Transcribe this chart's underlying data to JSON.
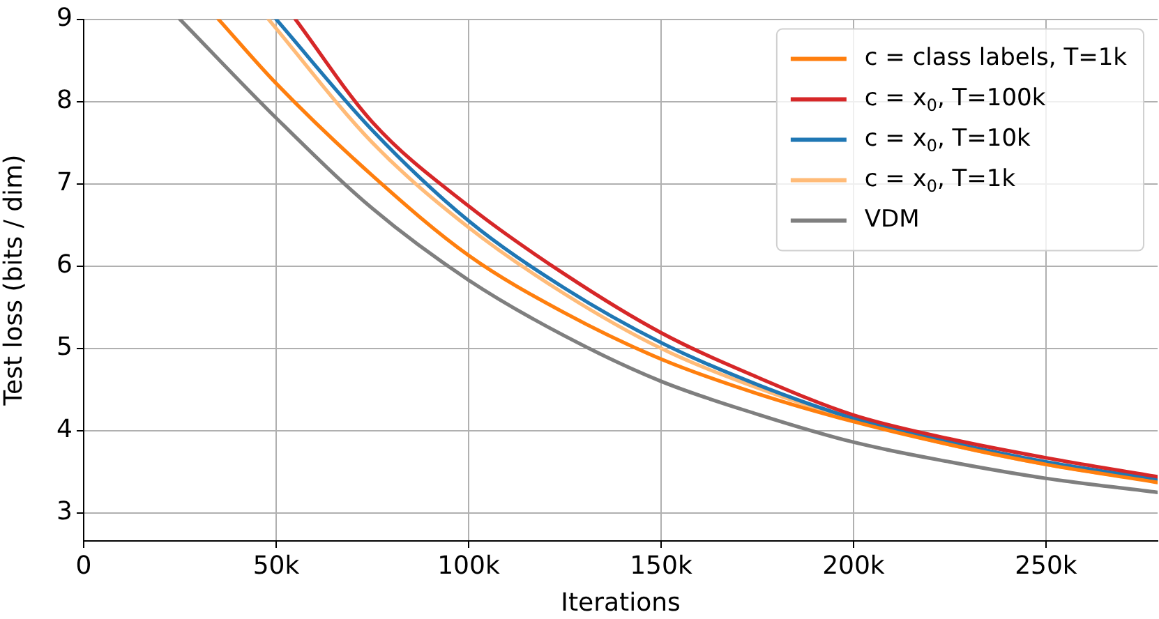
{
  "chart_data": {
    "type": "line",
    "xlabel": "Iterations",
    "ylabel": "Test loss (bits / dim)",
    "xlim": [
      0,
      279000
    ],
    "ylim": [
      2.66,
      9
    ],
    "xticks": [
      {
        "value": 0,
        "label": "0"
      },
      {
        "value": 50000,
        "label": "50k"
      },
      {
        "value": 100000,
        "label": "100k"
      },
      {
        "value": 150000,
        "label": "150k"
      },
      {
        "value": 200000,
        "label": "200k"
      },
      {
        "value": 250000,
        "label": "250k"
      }
    ],
    "yticks": [
      3,
      4,
      5,
      6,
      7,
      8,
      9
    ],
    "grid": true,
    "legend": "top right",
    "marker": "none",
    "line_style": "solid",
    "series": [
      {
        "name": "c = class labels, T=1k",
        "color": "#ff7f0e",
        "x": [
          35000,
          50000,
          75000,
          100000,
          125000,
          150000,
          175000,
          200000,
          225000,
          250000,
          279000
        ],
        "values": [
          9,
          8.22,
          7.1,
          6.13,
          5.43,
          4.87,
          4.45,
          4.11,
          3.83,
          3.59,
          3.37
        ]
      },
      {
        "name": "c = x$_{0}$, T=100k",
        "color": "#d62728",
        "x": [
          55000,
          75000,
          100000,
          125000,
          150000,
          175000,
          200000,
          225000,
          250000,
          279000
        ],
        "values": [
          9,
          7.75,
          6.73,
          5.9,
          5.19,
          4.65,
          4.19,
          3.9,
          3.67,
          3.44
        ]
      },
      {
        "name": "c = x$_{0}$, T=10k",
        "color": "#1f77b4",
        "x": [
          50000,
          75000,
          100000,
          125000,
          150000,
          175000,
          200000,
          225000,
          250000,
          279000
        ],
        "values": [
          9,
          7.65,
          6.55,
          5.73,
          5.07,
          4.56,
          4.15,
          3.86,
          3.62,
          3.41
        ]
      },
      {
        "name": "c = x$_{0}$, T=1k",
        "color": "#ffbb78",
        "x": [
          48000,
          75000,
          100000,
          125000,
          150000,
          175000,
          200000,
          225000,
          250000,
          279000
        ],
        "values": [
          9,
          7.5,
          6.47,
          5.66,
          5.0,
          4.52,
          4.13,
          3.83,
          3.59,
          3.38
        ]
      },
      {
        "name": "VDM",
        "color": "#7f7f7f",
        "x": [
          25000,
          50000,
          75000,
          100000,
          125000,
          150000,
          175000,
          200000,
          225000,
          250000,
          279000
        ],
        "values": [
          9,
          7.8,
          6.7,
          5.83,
          5.15,
          4.6,
          4.2,
          3.86,
          3.62,
          3.42,
          3.25
        ]
      }
    ]
  }
}
